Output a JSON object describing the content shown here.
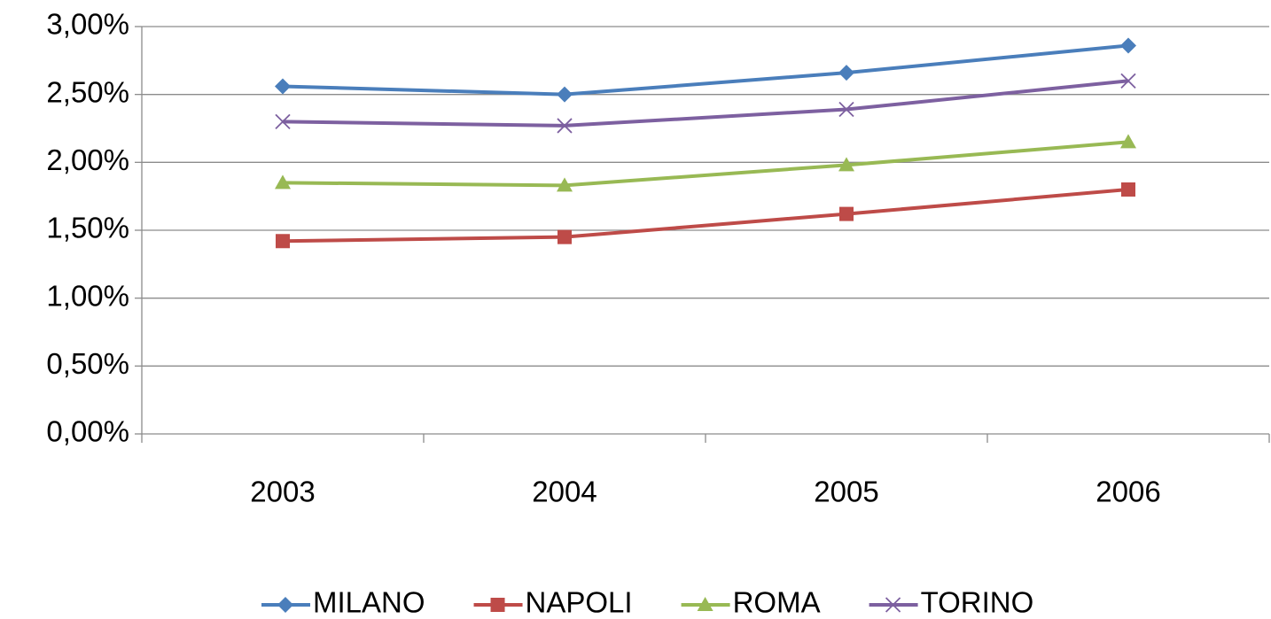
{
  "chart_data": {
    "type": "line",
    "categories": [
      "2003",
      "2004",
      "2005",
      "2006"
    ],
    "series": [
      {
        "name": "MILANO",
        "color": "#4a7ebb",
        "marker": "diamond",
        "values": [
          2.56,
          2.5,
          2.66,
          2.86
        ]
      },
      {
        "name": "NAPOLI",
        "color": "#be4b48",
        "marker": "square",
        "values": [
          1.42,
          1.45,
          1.62,
          1.8
        ]
      },
      {
        "name": "ROMA",
        "color": "#98b954",
        "marker": "triangle",
        "values": [
          1.85,
          1.83,
          1.98,
          2.15
        ]
      },
      {
        "name": "TORINO",
        "color": "#7d60a0",
        "marker": "x",
        "values": [
          2.3,
          2.27,
          2.39,
          2.6
        ]
      }
    ],
    "ylim": [
      0,
      3
    ],
    "yticks": [
      {
        "value": 0,
        "label": "0,00%"
      },
      {
        "value": 0.5,
        "label": "0,50%"
      },
      {
        "value": 1,
        "label": "1,00%"
      },
      {
        "value": 1.5,
        "label": "1,50%"
      },
      {
        "value": 2,
        "label": "2,00%"
      },
      {
        "value": 2.5,
        "label": "2,50%"
      },
      {
        "value": 3,
        "label": "3,00%"
      }
    ],
    "grid": true,
    "legend": "bottom"
  }
}
